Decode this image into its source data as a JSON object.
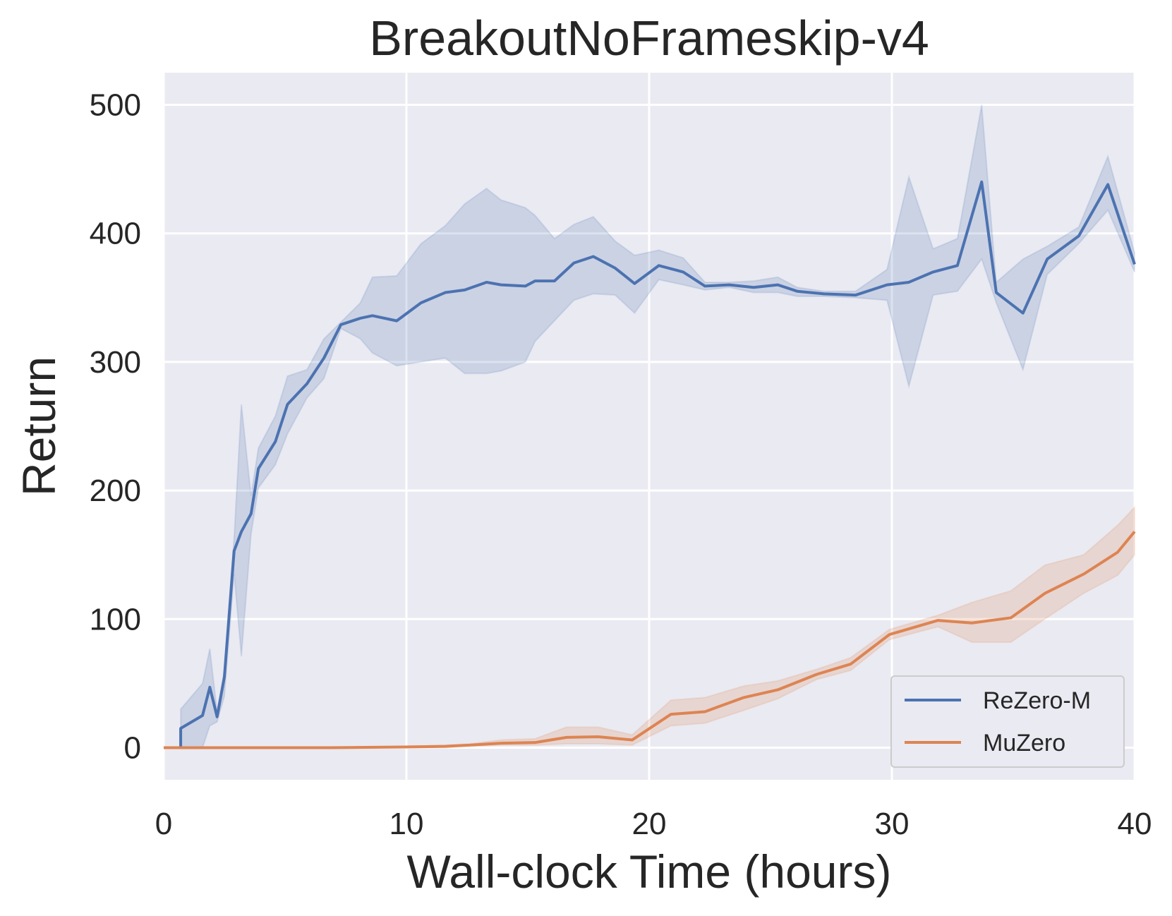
{
  "chart_data": {
    "type": "line",
    "title": "BreakoutNoFrameskip-v4",
    "xlabel": "Wall-clock Time (hours)",
    "ylabel": "Return",
    "xlim": [
      0,
      40
    ],
    "ylim": [
      -25,
      525
    ],
    "xticks": [
      0,
      10,
      20,
      30,
      40
    ],
    "yticks": [
      0,
      100,
      200,
      300,
      400,
      500
    ],
    "grid": true,
    "legend_position": "bottom-right",
    "series": [
      {
        "name": "ReZero-M",
        "color": "#4c72b0",
        "points": [
          [
            0,
            0
          ],
          [
            0.7,
            0
          ],
          [
            0.7,
            15
          ],
          [
            1.6,
            25
          ],
          [
            1.9,
            47
          ],
          [
            2.2,
            24
          ],
          [
            2.5,
            55
          ],
          [
            2.9,
            153
          ],
          [
            3.2,
            168
          ],
          [
            3.6,
            182
          ],
          [
            3.9,
            217
          ],
          [
            4.6,
            238
          ],
          [
            5.1,
            267
          ],
          [
            5.9,
            283
          ],
          [
            6.6,
            303
          ],
          [
            7.3,
            329
          ],
          [
            8.1,
            334
          ],
          [
            8.6,
            336
          ],
          [
            9.6,
            332
          ],
          [
            10.6,
            346
          ],
          [
            11.6,
            354
          ],
          [
            12.4,
            356
          ],
          [
            13.3,
            362
          ],
          [
            13.9,
            360
          ],
          [
            14.9,
            359
          ],
          [
            15.3,
            363
          ],
          [
            16.1,
            363
          ],
          [
            16.9,
            377
          ],
          [
            17.7,
            382
          ],
          [
            18.6,
            373
          ],
          [
            19.4,
            361
          ],
          [
            20.4,
            375
          ],
          [
            21.4,
            370
          ],
          [
            22.3,
            359
          ],
          [
            23.3,
            360
          ],
          [
            24.3,
            358
          ],
          [
            25.3,
            360
          ],
          [
            26.1,
            355
          ],
          [
            27.2,
            353
          ],
          [
            28.5,
            352
          ],
          [
            29.8,
            360
          ],
          [
            30.7,
            362
          ],
          [
            31.7,
            370
          ],
          [
            32.7,
            375
          ],
          [
            33.7,
            440
          ],
          [
            34.3,
            354
          ],
          [
            35.4,
            338
          ],
          [
            36.4,
            380
          ],
          [
            37.7,
            398
          ],
          [
            38.9,
            438
          ],
          [
            40,
            376
          ]
        ],
        "band_upper": [
          [
            0,
            0
          ],
          [
            0.7,
            0
          ],
          [
            0.7,
            30
          ],
          [
            1.6,
            50
          ],
          [
            1.9,
            77
          ],
          [
            2.2,
            28
          ],
          [
            2.5,
            60
          ],
          [
            2.9,
            163
          ],
          [
            3.2,
            267
          ],
          [
            3.6,
            196
          ],
          [
            3.9,
            233
          ],
          [
            4.6,
            258
          ],
          [
            5.1,
            289
          ],
          [
            5.9,
            294
          ],
          [
            6.6,
            318
          ],
          [
            7.3,
            331
          ],
          [
            8.1,
            346
          ],
          [
            8.6,
            366
          ],
          [
            9.6,
            367
          ],
          [
            10.6,
            392
          ],
          [
            11.6,
            406
          ],
          [
            12.4,
            423
          ],
          [
            13.3,
            435
          ],
          [
            13.9,
            426
          ],
          [
            14.9,
            420
          ],
          [
            15.3,
            414
          ],
          [
            16.1,
            396
          ],
          [
            16.9,
            407
          ],
          [
            17.7,
            413
          ],
          [
            18.6,
            394
          ],
          [
            19.4,
            383
          ],
          [
            20.4,
            387
          ],
          [
            21.4,
            381
          ],
          [
            22.3,
            362
          ],
          [
            23.3,
            362
          ],
          [
            24.3,
            363
          ],
          [
            25.3,
            366
          ],
          [
            26.1,
            358
          ],
          [
            27.2,
            355
          ],
          [
            28.5,
            355
          ],
          [
            29.8,
            372
          ],
          [
            30.7,
            444
          ],
          [
            31.7,
            388
          ],
          [
            32.7,
            396
          ],
          [
            33.7,
            500
          ],
          [
            34.3,
            362
          ],
          [
            35.4,
            380
          ],
          [
            36.4,
            390
          ],
          [
            37.7,
            405
          ],
          [
            38.9,
            460
          ],
          [
            40,
            385
          ]
        ],
        "band_lower": [
          [
            0,
            0
          ],
          [
            0.7,
            0
          ],
          [
            0.7,
            0
          ],
          [
            1.6,
            0
          ],
          [
            1.9,
            17
          ],
          [
            2.2,
            20
          ],
          [
            2.5,
            40
          ],
          [
            2.9,
            135
          ],
          [
            3.2,
            71
          ],
          [
            3.6,
            166
          ],
          [
            3.9,
            202
          ],
          [
            4.6,
            220
          ],
          [
            5.1,
            244
          ],
          [
            5.9,
            272
          ],
          [
            6.6,
            287
          ],
          [
            7.3,
            326
          ],
          [
            8.1,
            318
          ],
          [
            8.6,
            307
          ],
          [
            9.6,
            297
          ],
          [
            10.6,
            300
          ],
          [
            11.6,
            303
          ],
          [
            12.4,
            291
          ],
          [
            13.3,
            291
          ],
          [
            13.9,
            293
          ],
          [
            14.9,
            300
          ],
          [
            15.3,
            316
          ],
          [
            16.1,
            332
          ],
          [
            16.9,
            348
          ],
          [
            17.7,
            353
          ],
          [
            18.6,
            352
          ],
          [
            19.4,
            338
          ],
          [
            20.4,
            364
          ],
          [
            21.4,
            360
          ],
          [
            22.3,
            356
          ],
          [
            23.3,
            358
          ],
          [
            24.3,
            354
          ],
          [
            25.3,
            354
          ],
          [
            26.1,
            351
          ],
          [
            27.2,
            351
          ],
          [
            28.5,
            350
          ],
          [
            29.8,
            348
          ],
          [
            30.7,
            281
          ],
          [
            31.7,
            352
          ],
          [
            32.7,
            355
          ],
          [
            33.7,
            380
          ],
          [
            34.3,
            346
          ],
          [
            35.4,
            294
          ],
          [
            36.4,
            368
          ],
          [
            37.7,
            392
          ],
          [
            38.9,
            418
          ],
          [
            40,
            370
          ]
        ]
      },
      {
        "name": "MuZero",
        "color": "#dd8452",
        "points": [
          [
            0,
            0
          ],
          [
            6.9,
            0
          ],
          [
            9.9,
            0.5
          ],
          [
            11.6,
            1
          ],
          [
            12.6,
            2
          ],
          [
            13.9,
            3.5
          ],
          [
            15.3,
            4
          ],
          [
            16.6,
            8
          ],
          [
            17.9,
            8.5
          ],
          [
            19.3,
            6
          ],
          [
            20.9,
            26
          ],
          [
            22.3,
            28
          ],
          [
            23.9,
            39
          ],
          [
            25.3,
            45
          ],
          [
            26.9,
            57
          ],
          [
            28.3,
            65
          ],
          [
            29.9,
            88
          ],
          [
            31.9,
            99
          ],
          [
            33.3,
            97
          ],
          [
            34.9,
            101
          ],
          [
            36.3,
            120
          ],
          [
            37.9,
            135
          ],
          [
            39.3,
            152
          ],
          [
            40,
            168
          ]
        ],
        "band_upper": [
          [
            0,
            0
          ],
          [
            6.9,
            0
          ],
          [
            9.9,
            1
          ],
          [
            11.6,
            2
          ],
          [
            12.6,
            3
          ],
          [
            13.9,
            6
          ],
          [
            15.3,
            7
          ],
          [
            16.6,
            16
          ],
          [
            17.9,
            16
          ],
          [
            19.3,
            10
          ],
          [
            20.9,
            37
          ],
          [
            22.3,
            39
          ],
          [
            23.9,
            48
          ],
          [
            25.3,
            52
          ],
          [
            26.9,
            61
          ],
          [
            28.3,
            70
          ],
          [
            29.9,
            92
          ],
          [
            31.9,
            103
          ],
          [
            33.3,
            113
          ],
          [
            34.9,
            122
          ],
          [
            36.3,
            142
          ],
          [
            37.9,
            150
          ],
          [
            39.3,
            173
          ],
          [
            40,
            187
          ]
        ],
        "band_lower": [
          [
            0,
            0
          ],
          [
            6.9,
            0
          ],
          [
            9.9,
            0
          ],
          [
            11.6,
            0
          ],
          [
            12.6,
            1
          ],
          [
            13.9,
            2
          ],
          [
            15.3,
            2
          ],
          [
            16.6,
            3
          ],
          [
            17.9,
            3
          ],
          [
            19.3,
            2
          ],
          [
            20.9,
            17
          ],
          [
            22.3,
            19
          ],
          [
            23.9,
            29
          ],
          [
            25.3,
            38
          ],
          [
            26.9,
            53
          ],
          [
            28.3,
            60
          ],
          [
            29.9,
            84
          ],
          [
            31.9,
            94
          ],
          [
            33.3,
            82
          ],
          [
            34.9,
            82
          ],
          [
            36.3,
            100
          ],
          [
            37.9,
            120
          ],
          [
            39.3,
            134
          ],
          [
            40,
            150
          ]
        ]
      }
    ]
  }
}
